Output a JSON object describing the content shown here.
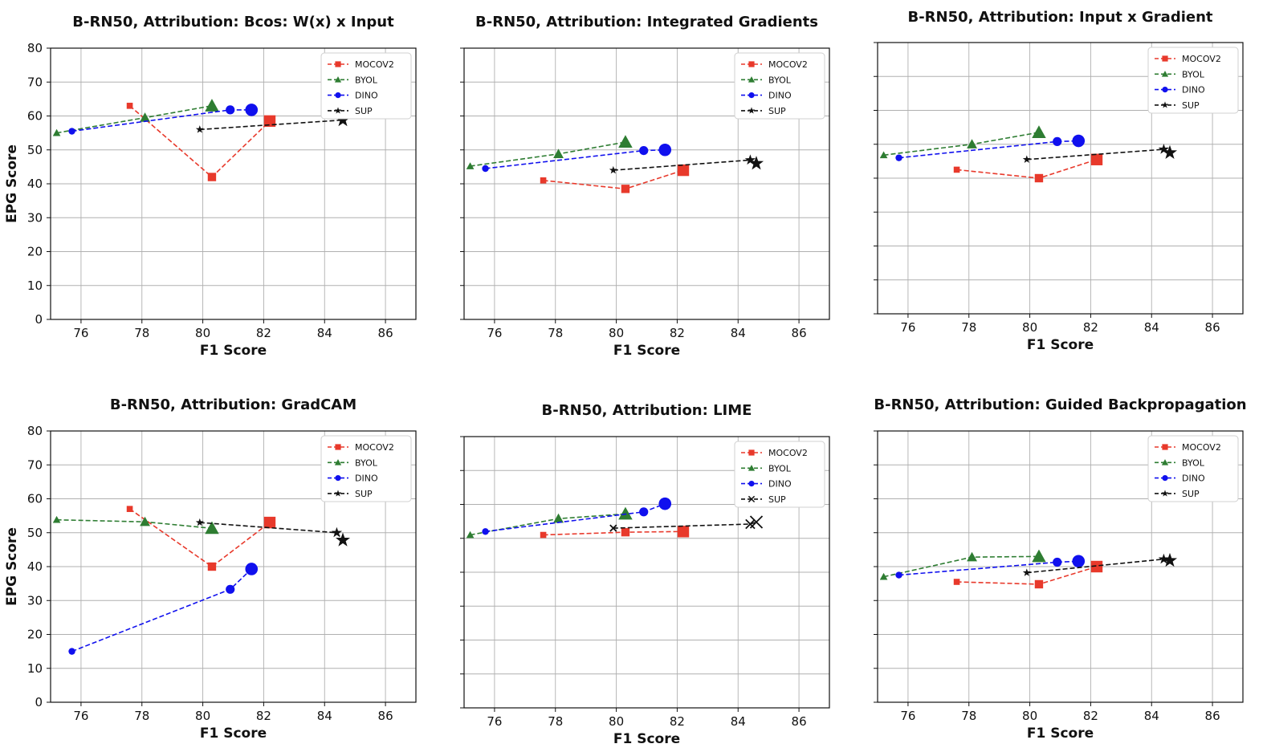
{
  "chart_data": [
    {
      "type": "line",
      "title": "B-RN50, Attribution: Bcos: W(x) x Input",
      "xlabel": "F1 Score",
      "ylabel": "EPG Score",
      "xlim": [
        75,
        87
      ],
      "ylim": [
        0,
        80
      ],
      "xticks": [
        "76",
        "78",
        "80",
        "82",
        "84",
        "86"
      ],
      "yticks": [
        "0",
        "10",
        "20",
        "30",
        "40",
        "50",
        "60",
        "70",
        "80"
      ],
      "show_y_ticklabels": true,
      "legend_position": "top-right",
      "series": [
        {
          "name": "MOCOV2",
          "color": "#e8392b",
          "marker": "square",
          "x": [
            77.6,
            80.3,
            82.2
          ],
          "y": [
            63,
            42,
            58.5
          ]
        },
        {
          "name": "BYOL",
          "color": "#2e7d32",
          "marker": "triangle",
          "x": [
            75.2,
            78.1,
            80.3
          ],
          "y": [
            55,
            59.5,
            63
          ]
        },
        {
          "name": "DINO",
          "color": "#1010ee",
          "marker": "circle",
          "x": [
            75.7,
            80.9,
            81.6
          ],
          "y": [
            55.5,
            61.8,
            61.8
          ]
        },
        {
          "name": "SUP",
          "color": "#111111",
          "marker": "star",
          "x": [
            79.9,
            84.6
          ],
          "y": [
            56,
            58.8
          ]
        }
      ]
    },
    {
      "type": "line",
      "title": "B-RN50, Attribution: Integrated Gradients",
      "xlabel": "F1 Score",
      "ylabel": "",
      "xlim": [
        75,
        87
      ],
      "ylim": [
        0,
        80
      ],
      "xticks": [
        "76",
        "78",
        "80",
        "82",
        "84",
        "86"
      ],
      "yticks": [],
      "show_y_ticklabels": false,
      "legend_position": "top-right",
      "series": [
        {
          "name": "MOCOV2",
          "color": "#e8392b",
          "marker": "square",
          "x": [
            77.6,
            80.3,
            82.2
          ],
          "y": [
            41,
            38.5,
            44
          ]
        },
        {
          "name": "BYOL",
          "color": "#2e7d32",
          "marker": "triangle",
          "x": [
            75.2,
            78.1,
            80.3
          ],
          "y": [
            45.2,
            48.8,
            52.3
          ]
        },
        {
          "name": "DINO",
          "color": "#1010ee",
          "marker": "circle",
          "x": [
            75.7,
            80.9,
            81.6
          ],
          "y": [
            44.5,
            49.8,
            50
          ]
        },
        {
          "name": "SUP",
          "color": "#111111",
          "marker": "star",
          "x": [
            79.9,
            84.4,
            84.6
          ],
          "y": [
            44,
            47,
            46
          ]
        }
      ]
    },
    {
      "type": "line",
      "title": "B-RN50, Attribution: Input x Gradient",
      "xlabel": "F1 Score",
      "ylabel": "",
      "xlim": [
        75,
        87
      ],
      "ylim": [
        0,
        80
      ],
      "xticks": [
        "76",
        "78",
        "80",
        "82",
        "84",
        "86"
      ],
      "yticks": [],
      "show_y_ticklabels": false,
      "legend_position": "top-right",
      "series": [
        {
          "name": "MOCOV2",
          "color": "#e8392b",
          "marker": "square",
          "x": [
            77.6,
            80.3,
            82.2
          ],
          "y": [
            42.5,
            40,
            45.5
          ]
        },
        {
          "name": "BYOL",
          "color": "#2e7d32",
          "marker": "triangle",
          "x": [
            75.2,
            78.1,
            80.3
          ],
          "y": [
            46.8,
            50,
            53.5
          ]
        },
        {
          "name": "DINO",
          "color": "#1010ee",
          "marker": "circle",
          "x": [
            75.7,
            80.9,
            81.6
          ],
          "y": [
            46,
            50.8,
            51
          ]
        },
        {
          "name": "SUP",
          "color": "#111111",
          "marker": "star",
          "x": [
            79.9,
            84.4,
            84.6
          ],
          "y": [
            45.5,
            48.5,
            47.5
          ]
        }
      ]
    },
    {
      "type": "line",
      "title": "B-RN50, Attribution: GradCAM",
      "xlabel": "F1 Score",
      "ylabel": "EPG Score",
      "xlim": [
        75,
        87
      ],
      "ylim": [
        0,
        80
      ],
      "xticks": [
        "76",
        "78",
        "80",
        "82",
        "84",
        "86"
      ],
      "yticks": [
        "0",
        "10",
        "20",
        "30",
        "40",
        "50",
        "60",
        "70",
        "80"
      ],
      "show_y_ticklabels": true,
      "legend_position": "top-right",
      "series": [
        {
          "name": "MOCOV2",
          "color": "#e8392b",
          "marker": "square",
          "x": [
            77.6,
            80.3,
            82.2
          ],
          "y": [
            57,
            40,
            53
          ]
        },
        {
          "name": "BYOL",
          "color": "#2e7d32",
          "marker": "triangle",
          "x": [
            75.2,
            78.1,
            80.3
          ],
          "y": [
            53.8,
            53.2,
            51.3
          ]
        },
        {
          "name": "DINO",
          "color": "#1010ee",
          "marker": "circle",
          "x": [
            75.7,
            80.9,
            81.6
          ],
          "y": [
            15,
            33.3,
            39.3
          ]
        },
        {
          "name": "SUP",
          "color": "#111111",
          "marker": "star",
          "x": [
            79.9,
            84.4,
            84.6
          ],
          "y": [
            53,
            50,
            47.8
          ]
        }
      ]
    },
    {
      "type": "line",
      "title": "B-RN50, Attribution: LIME",
      "xlabel": "F1 Score",
      "ylabel": "",
      "xlim": [
        75,
        87
      ],
      "ylim": [
        0,
        80
      ],
      "xticks": [
        "76",
        "78",
        "80",
        "82",
        "84",
        "86"
      ],
      "yticks": [],
      "show_y_ticklabels": false,
      "legend_position": "top-right",
      "series": [
        {
          "name": "MOCOV2",
          "color": "#e8392b",
          "marker": "square",
          "x": [
            77.6,
            80.3,
            82.2
          ],
          "y": [
            51,
            51.8,
            52
          ]
        },
        {
          "name": "BYOL",
          "color": "#2e7d32",
          "marker": "triangle",
          "x": [
            75.2,
            78.1,
            80.3
          ],
          "y": [
            51,
            55.8,
            57.2
          ]
        },
        {
          "name": "DINO",
          "color": "#1010ee",
          "marker": "circle",
          "x": [
            75.7,
            80.9,
            81.6
          ],
          "y": [
            52,
            57.8,
            60.2
          ]
        },
        {
          "name": "SUP",
          "color": "#111111",
          "marker": "x",
          "x": [
            79.9,
            84.4,
            84.6
          ],
          "y": [
            53,
            54.2,
            54.8
          ]
        }
      ]
    },
    {
      "type": "line",
      "title": "B-RN50, Attribution: Guided Backpropagation",
      "xlabel": "F1 Score",
      "ylabel": "",
      "xlim": [
        75,
        87
      ],
      "ylim": [
        0,
        80
      ],
      "xticks": [
        "76",
        "78",
        "80",
        "82",
        "84",
        "86"
      ],
      "yticks": [],
      "show_y_ticklabels": false,
      "legend_position": "top-right",
      "series": [
        {
          "name": "MOCOV2",
          "color": "#e8392b",
          "marker": "square",
          "x": [
            77.6,
            80.3,
            82.2
          ],
          "y": [
            35.5,
            34.8,
            40
          ]
        },
        {
          "name": "BYOL",
          "color": "#2e7d32",
          "marker": "triangle",
          "x": [
            75.2,
            78.1,
            80.3
          ],
          "y": [
            37,
            42.8,
            43
          ]
        },
        {
          "name": "DINO",
          "color": "#1010ee",
          "marker": "circle",
          "x": [
            75.7,
            80.9,
            81.6
          ],
          "y": [
            37.5,
            41.3,
            41.6
          ]
        },
        {
          "name": "SUP",
          "color": "#111111",
          "marker": "star",
          "x": [
            79.9,
            84.4,
            84.6
          ],
          "y": [
            38.2,
            42.2,
            41.8
          ]
        }
      ]
    }
  ]
}
